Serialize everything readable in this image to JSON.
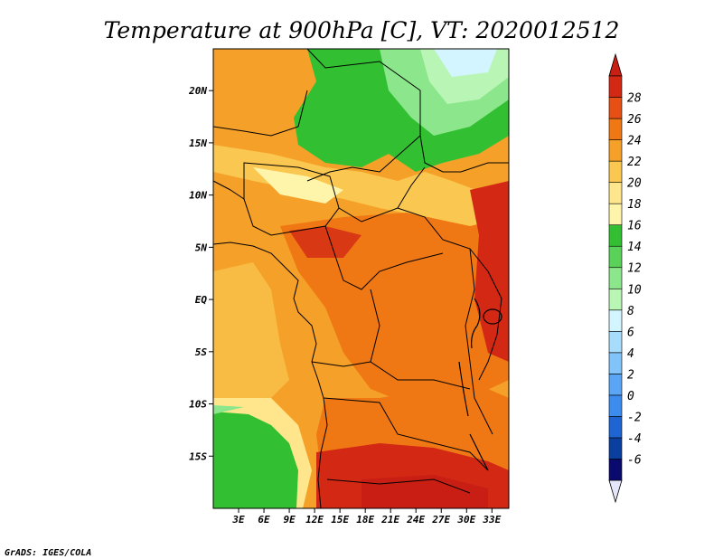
{
  "title": "Temperature at 900hPa [C], VT: 2020012512",
  "credit": "GrADS: IGES/COLA",
  "map": {
    "lon_range": [
      0,
      35
    ],
    "lat_range": [
      -20,
      24
    ],
    "x_ticks": [
      {
        "lon": 3,
        "label": "3E"
      },
      {
        "lon": 6,
        "label": "6E"
      },
      {
        "lon": 9,
        "label": "9E"
      },
      {
        "lon": 12,
        "label": "12E"
      },
      {
        "lon": 15,
        "label": "15E"
      },
      {
        "lon": 18,
        "label": "18E"
      },
      {
        "lon": 21,
        "label": "21E"
      },
      {
        "lon": 24,
        "label": "24E"
      },
      {
        "lon": 27,
        "label": "27E"
      },
      {
        "lon": 30,
        "label": "30E"
      },
      {
        "lon": 33,
        "label": "33E"
      }
    ],
    "y_ticks": [
      {
        "lat": 20,
        "label": "20N"
      },
      {
        "lat": 15,
        "label": "15N"
      },
      {
        "lat": 10,
        "label": "10N"
      },
      {
        "lat": 5,
        "label": "5N"
      },
      {
        "lat": 0,
        "label": "EQ"
      },
      {
        "lat": -5,
        "label": "5S"
      },
      {
        "lat": -10,
        "label": "10S"
      },
      {
        "lat": -15,
        "label": "15S"
      }
    ]
  },
  "colorbar": {
    "levels": [
      "-6",
      "-4",
      "-2",
      "0",
      "2",
      "4",
      "6",
      "8",
      "10",
      "12",
      "14",
      "16",
      "18",
      "20",
      "22",
      "24",
      "26",
      "28"
    ],
    "colors": [
      "#0a0a6e",
      "#0a3fa0",
      "#1e64d2",
      "#3c8cf0",
      "#5aa5f5",
      "#82c3fa",
      "#a8dcfc",
      "#d2f5ff",
      "#b9f5b4",
      "#8ce68c",
      "#5ad25a",
      "#32c032",
      "#fff5aa",
      "#ffe68c",
      "#fac850",
      "#f5a028",
      "#f07814",
      "#e65014",
      "#d22814"
    ],
    "under_color": "#e6e6fa",
    "over_color": "#c81e14"
  },
  "field_colors": {
    "hot": "#d22814",
    "warm": "#f07814",
    "mid": "#f5a028",
    "mild": "#fac850",
    "cool": "#ffe68c",
    "pale": "#fff5aa",
    "green": "#32c032",
    "lightgreen": "#8ce68c",
    "mint": "#b9f5b4",
    "ice": "#d2f5ff"
  }
}
